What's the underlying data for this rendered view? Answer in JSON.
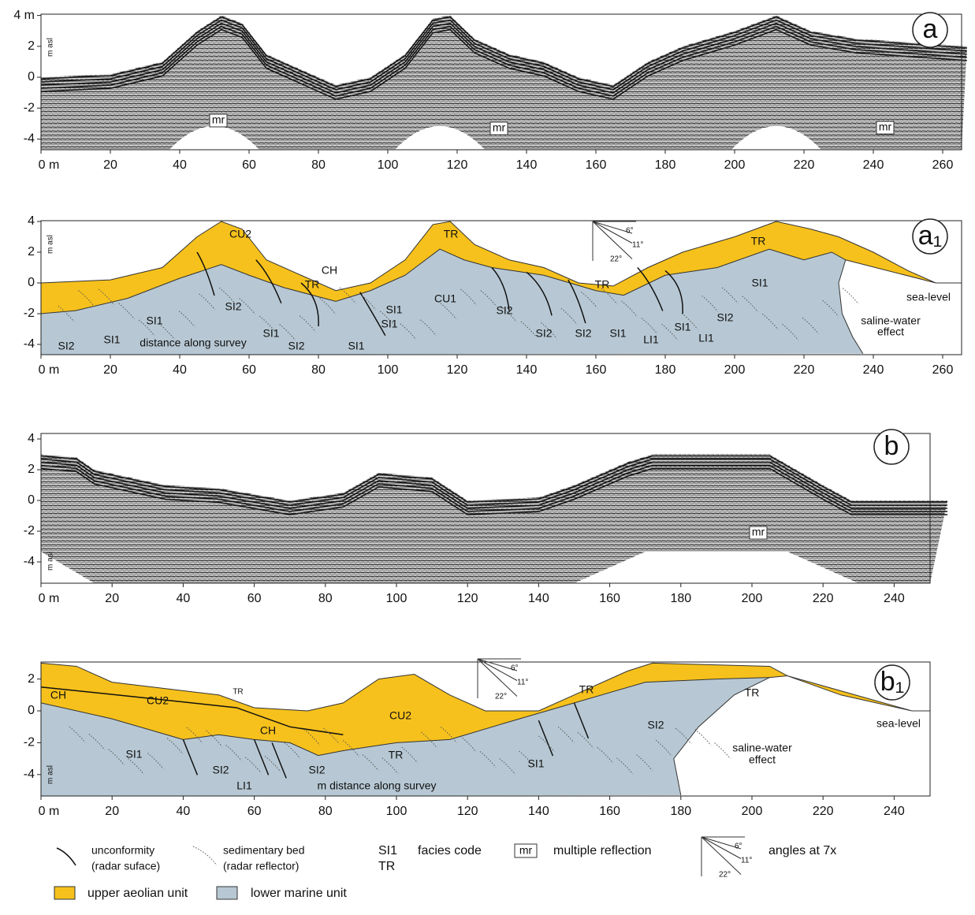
{
  "panels": [
    {
      "label": "a",
      "y_axis_label": "m asl",
      "xticks": [
        {
          "value": 0,
          "label": "0 m"
        },
        20,
        40,
        60,
        80,
        100,
        120,
        140,
        160,
        180,
        200,
        220,
        240,
        260
      ],
      "yticks": [
        {
          "value": 4,
          "label": "4 m"
        },
        2,
        0,
        -2,
        -4
      ],
      "annotations": [
        "mr",
        "mr",
        "mr"
      ]
    },
    {
      "label": "a₁",
      "y_axis_label": "m asl",
      "xticks": [
        {
          "value": 0,
          "label": "0 m"
        },
        20,
        40,
        60,
        80,
        100,
        120,
        140,
        160,
        180,
        200,
        220,
        240,
        260
      ],
      "yticks": [
        4,
        2,
        0,
        -2,
        -4
      ],
      "angles": [
        "6°",
        "11°",
        "22°"
      ],
      "annotations": [
        "CU2",
        "CH",
        "TR",
        "CU1",
        "TR",
        "TR",
        "TR",
        "SI2",
        "SI1",
        "SI2",
        "SI1",
        "distance along survey",
        "SI1",
        "SI2",
        "SI1",
        "SI1",
        "SI1",
        "SI2",
        "SI2",
        "SI2",
        "SI1",
        "LI1",
        "SI1",
        "LI1",
        "SI2",
        "SI1",
        "sea-level",
        "saline-water",
        "effect"
      ]
    },
    {
      "label": "b",
      "y_axis_label": "m asl",
      "xticks": [
        {
          "value": 0,
          "label": "0 m"
        },
        20,
        40,
        60,
        80,
        100,
        120,
        140,
        160,
        180,
        200,
        220,
        240
      ],
      "yticks": [
        4,
        2,
        0,
        -2,
        -4
      ],
      "annotations": [
        "mr"
      ]
    },
    {
      "label": "b₁",
      "y_axis_label": "m asl",
      "xticks": [
        {
          "value": 0,
          "label": "0 m"
        },
        20,
        40,
        60,
        80,
        100,
        120,
        140,
        160,
        180,
        200,
        220,
        240
      ],
      "yticks": [
        2,
        0,
        -2,
        -4
      ],
      "angles": [
        "6°",
        "11°",
        "22°"
      ],
      "annotations": [
        "CH",
        "CU2",
        "TR",
        "CH",
        "CU2",
        "TR",
        "TR",
        "SI1",
        "SI2",
        "LI1",
        "SI2",
        "TR",
        "SI1",
        "SI2",
        "m distance along survey",
        "sea-level",
        "saline-water",
        "effect"
      ]
    }
  ],
  "legend": {
    "unconformity": [
      "unconformity",
      "(radar suface)"
    ],
    "sedimentary_bed": [
      "sedimentary bed",
      "(radar reflector)"
    ],
    "facies": [
      "SI1",
      "TR",
      "facies code"
    ],
    "multiple": [
      "mr",
      "multiple reflection"
    ],
    "angles": [
      "6°",
      "11°",
      "22°",
      "angles at 7x"
    ],
    "units": [
      "upper aeolian unit",
      "lower marine unit"
    ]
  }
}
